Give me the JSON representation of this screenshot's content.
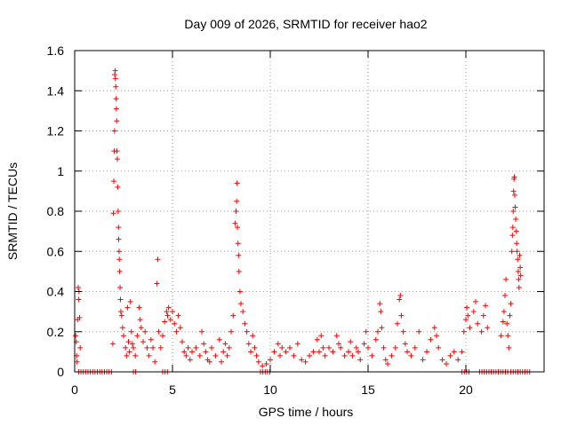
{
  "chart_data": {
    "type": "scatter",
    "title": "Day 009 of 2026, SRMTID for receiver hao2",
    "xlabel": "GPS time / hours",
    "ylabel": "SRMTID / TECUs",
    "xlim": [
      0,
      24
    ],
    "ylim": [
      0,
      1.6
    ],
    "xticks": [
      0,
      5,
      10,
      15,
      20
    ],
    "xtick_labels": [
      "0",
      "5",
      "10",
      "15",
      "20"
    ],
    "yticks": [
      0,
      0.2,
      0.4,
      0.6,
      0.8,
      1,
      1.2,
      1.4,
      1.6
    ],
    "ytick_labels": [
      "0",
      "0.2",
      "0.4",
      "0.6",
      "0.8",
      "1",
      "1.2",
      "1.4",
      "1.6"
    ],
    "grid": true,
    "marker": "plus",
    "color": "#ff0000",
    "series": [
      {
        "name": "SRMTID",
        "points": [
          [
            0.05,
            0.18
          ],
          [
            0.08,
            0.15
          ],
          [
            0.1,
            0.08
          ],
          [
            0.12,
            0.05
          ],
          [
            0.15,
            0.26
          ],
          [
            0.18,
            0.42
          ],
          [
            0.2,
            0.36
          ],
          [
            0.22,
            0.4
          ],
          [
            0.25,
            0.27
          ],
          [
            0.28,
            0.12
          ],
          [
            1.95,
            0.14
          ],
          [
            1.98,
            0.79
          ],
          [
            2.0,
            0.95
          ],
          [
            2.02,
            1.1
          ],
          [
            2.04,
            1.2
          ],
          [
            2.05,
            1.48
          ],
          [
            2.07,
            1.5
          ],
          [
            2.08,
            1.46
          ],
          [
            2.1,
            1.42
          ],
          [
            2.12,
            1.36
          ],
          [
            2.13,
            1.31
          ],
          [
            2.15,
            1.25
          ],
          [
            2.16,
            1.1
          ],
          [
            2.18,
            1.06
          ],
          [
            2.2,
            0.92
          ],
          [
            2.22,
            0.8
          ],
          [
            2.24,
            0.72
          ],
          [
            2.25,
            0.66
          ],
          [
            2.27,
            0.6
          ],
          [
            2.28,
            0.56
          ],
          [
            2.3,
            0.5
          ],
          [
            2.32,
            0.42
          ],
          [
            2.34,
            0.36
          ],
          [
            2.36,
            0.3
          ],
          [
            2.4,
            0.28
          ],
          [
            2.45,
            0.22
          ],
          [
            2.5,
            0.18
          ],
          [
            2.6,
            0.12
          ],
          [
            2.65,
            0.08
          ],
          [
            2.7,
            0.32
          ],
          [
            2.75,
            0.15
          ],
          [
            2.8,
            0.1
          ],
          [
            2.85,
            0.35
          ],
          [
            2.9,
            0.2
          ],
          [
            2.95,
            0.14
          ],
          [
            3.0,
            0.12
          ],
          [
            3.1,
            0.08
          ],
          [
            3.2,
            0.18
          ],
          [
            3.3,
            0.32
          ],
          [
            3.35,
            0.26
          ],
          [
            3.4,
            0.22
          ],
          [
            3.5,
            0.15
          ],
          [
            3.6,
            0.2
          ],
          [
            3.7,
            0.12
          ],
          [
            3.8,
            0.08
          ],
          [
            3.9,
            0.16
          ],
          [
            4.0,
            0.12
          ],
          [
            4.1,
            0.05
          ],
          [
            4.2,
            0.44
          ],
          [
            4.25,
            0.56
          ],
          [
            4.3,
            0.2
          ],
          [
            4.4,
            0.12
          ],
          [
            4.5,
            0.18
          ],
          [
            4.6,
            0.25
          ],
          [
            4.7,
            0.3
          ],
          [
            4.75,
            0.28
          ],
          [
            4.8,
            0.32
          ],
          [
            4.9,
            0.26
          ],
          [
            5.0,
            0.3
          ],
          [
            5.1,
            0.24
          ],
          [
            5.2,
            0.2
          ],
          [
            5.3,
            0.28
          ],
          [
            5.4,
            0.22
          ],
          [
            5.5,
            0.15
          ],
          [
            5.6,
            0.1
          ],
          [
            5.7,
            0.08
          ],
          [
            5.8,
            0.12
          ],
          [
            5.9,
            0.06
          ],
          [
            6.0,
            0.1
          ],
          [
            6.2,
            0.12
          ],
          [
            6.4,
            0.08
          ],
          [
            6.5,
            0.2
          ],
          [
            6.6,
            0.14
          ],
          [
            6.7,
            0.1
          ],
          [
            6.8,
            0.06
          ],
          [
            6.9,
            0.05
          ],
          [
            7.0,
            0.12
          ],
          [
            7.2,
            0.08
          ],
          [
            7.4,
            0.16
          ],
          [
            7.5,
            0.05
          ],
          [
            7.6,
            0.1
          ],
          [
            7.7,
            0.14
          ],
          [
            7.8,
            0.08
          ],
          [
            7.9,
            0.12
          ],
          [
            8.0,
            0.2
          ],
          [
            8.1,
            0.28
          ],
          [
            8.2,
            0.74
          ],
          [
            8.25,
            0.8
          ],
          [
            8.28,
            0.85
          ],
          [
            8.3,
            0.94
          ],
          [
            8.32,
            0.72
          ],
          [
            8.35,
            0.64
          ],
          [
            8.38,
            0.58
          ],
          [
            8.4,
            0.5
          ],
          [
            8.45,
            0.4
          ],
          [
            8.5,
            0.34
          ],
          [
            8.6,
            0.3
          ],
          [
            8.7,
            0.24
          ],
          [
            8.8,
            0.2
          ],
          [
            8.9,
            0.14
          ],
          [
            9.0,
            0.1
          ],
          [
            9.1,
            0.18
          ],
          [
            9.2,
            0.12
          ],
          [
            9.3,
            0.08
          ],
          [
            9.4,
            0.05
          ],
          [
            9.6,
            0.03
          ],
          [
            9.8,
            0.04
          ],
          [
            10.0,
            0.06
          ],
          [
            10.2,
            0.1
          ],
          [
            10.4,
            0.14
          ],
          [
            10.5,
            0.08
          ],
          [
            10.6,
            0.12
          ],
          [
            10.8,
            0.1
          ],
          [
            11.0,
            0.12
          ],
          [
            11.2,
            0.08
          ],
          [
            11.4,
            0.14
          ],
          [
            11.6,
            0.06
          ],
          [
            11.8,
            0.05
          ],
          [
            12.0,
            0.08
          ],
          [
            12.2,
            0.1
          ],
          [
            12.4,
            0.16
          ],
          [
            12.5,
            0.1
          ],
          [
            12.6,
            0.18
          ],
          [
            12.7,
            0.12
          ],
          [
            12.8,
            0.08
          ],
          [
            13.0,
            0.12
          ],
          [
            13.2,
            0.1
          ],
          [
            13.4,
            0.18
          ],
          [
            13.5,
            0.14
          ],
          [
            13.6,
            0.12
          ],
          [
            13.8,
            0.08
          ],
          [
            14.0,
            0.1
          ],
          [
            14.1,
            0.15
          ],
          [
            14.2,
            0.08
          ],
          [
            14.4,
            0.12
          ],
          [
            14.5,
            0.1
          ],
          [
            14.6,
            0.06
          ],
          [
            14.8,
            0.14
          ],
          [
            14.9,
            0.2
          ],
          [
            15.0,
            0.12
          ],
          [
            15.2,
            0.08
          ],
          [
            15.4,
            0.16
          ],
          [
            15.5,
            0.2
          ],
          [
            15.6,
            0.34
          ],
          [
            15.65,
            0.3
          ],
          [
            15.7,
            0.22
          ],
          [
            15.8,
            0.12
          ],
          [
            15.9,
            0.06
          ],
          [
            16.0,
            0.04
          ],
          [
            16.2,
            0.08
          ],
          [
            16.4,
            0.12
          ],
          [
            16.5,
            0.24
          ],
          [
            16.6,
            0.36
          ],
          [
            16.65,
            0.38
          ],
          [
            16.7,
            0.28
          ],
          [
            16.8,
            0.2
          ],
          [
            16.9,
            0.14
          ],
          [
            17.0,
            0.1
          ],
          [
            17.2,
            0.08
          ],
          [
            17.4,
            0.12
          ],
          [
            17.6,
            0.2
          ],
          [
            17.8,
            0.06
          ],
          [
            18.0,
            0.1
          ],
          [
            18.2,
            0.16
          ],
          [
            18.4,
            0.22
          ],
          [
            18.5,
            0.18
          ],
          [
            18.6,
            0.12
          ],
          [
            18.8,
            0.06
          ],
          [
            19.0,
            0.04
          ],
          [
            19.2,
            0.08
          ],
          [
            19.4,
            0.1
          ],
          [
            19.6,
            0.06
          ],
          [
            19.8,
            0.1
          ],
          [
            19.9,
            0.2
          ],
          [
            20.0,
            0.26
          ],
          [
            20.05,
            0.32
          ],
          [
            20.1,
            0.28
          ],
          [
            20.2,
            0.22
          ],
          [
            20.4,
            0.3
          ],
          [
            20.5,
            0.35
          ],
          [
            20.6,
            0.24
          ],
          [
            20.8,
            0.2
          ],
          [
            20.9,
            0.28
          ],
          [
            21.0,
            0.33
          ],
          [
            21.1,
            0.22
          ],
          [
            21.8,
            0.18
          ],
          [
            21.9,
            0.25
          ],
          [
            21.95,
            0.3
          ],
          [
            22.0,
            0.38
          ],
          [
            22.05,
            0.46
          ],
          [
            22.1,
            0.24
          ],
          [
            22.15,
            0.18
          ],
          [
            22.2,
            0.12
          ],
          [
            22.25,
            0.28
          ],
          [
            22.3,
            0.34
          ],
          [
            22.35,
            0.6
          ],
          [
            22.38,
            0.68
          ],
          [
            22.4,
            0.72
          ],
          [
            22.42,
            0.8
          ],
          [
            22.44,
            0.9
          ],
          [
            22.46,
            0.96
          ],
          [
            22.48,
            0.97
          ],
          [
            22.5,
            0.88
          ],
          [
            22.52,
            0.82
          ],
          [
            22.55,
            0.76
          ],
          [
            22.58,
            0.7
          ],
          [
            22.6,
            0.64
          ],
          [
            22.62,
            0.6
          ],
          [
            22.65,
            0.56
          ],
          [
            22.68,
            0.5
          ],
          [
            22.7,
            0.46
          ],
          [
            22.72,
            0.42
          ],
          [
            22.75,
            0.58
          ],
          [
            22.78,
            0.52
          ],
          [
            22.8,
            0.48
          ]
        ],
        "zero_runs": [
          [
            0.2,
            1.9
          ],
          [
            3.0,
            3.2
          ],
          [
            4.5,
            4.8
          ],
          [
            9.5,
            10.0
          ],
          [
            19.8,
            20.2
          ],
          [
            20.7,
            22.2
          ],
          [
            22.3,
            23.3
          ]
        ]
      }
    ]
  }
}
